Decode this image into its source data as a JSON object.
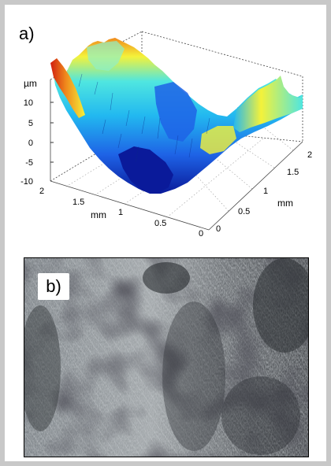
{
  "panel_a": {
    "label": "a)",
    "unit_z": "µm",
    "z_ticks": [
      "10",
      "5",
      "0",
      "-5",
      "-10"
    ],
    "left_axis": {
      "label": "mm",
      "ticks": [
        "2",
        "1.5",
        "1",
        "0.5",
        "0"
      ]
    },
    "right_axis": {
      "label": "mm",
      "ticks": [
        "0",
        "0.5",
        "1",
        "1.5",
        "2"
      ]
    }
  },
  "panel_b": {
    "label": "b)"
  },
  "colors": {
    "frame": "#c8c8c8",
    "colormap": [
      "#0a1a9a",
      "#1e63e6",
      "#22b8f0",
      "#4fe6e0",
      "#f4f23a",
      "#f08a1c",
      "#d01e10"
    ]
  }
}
